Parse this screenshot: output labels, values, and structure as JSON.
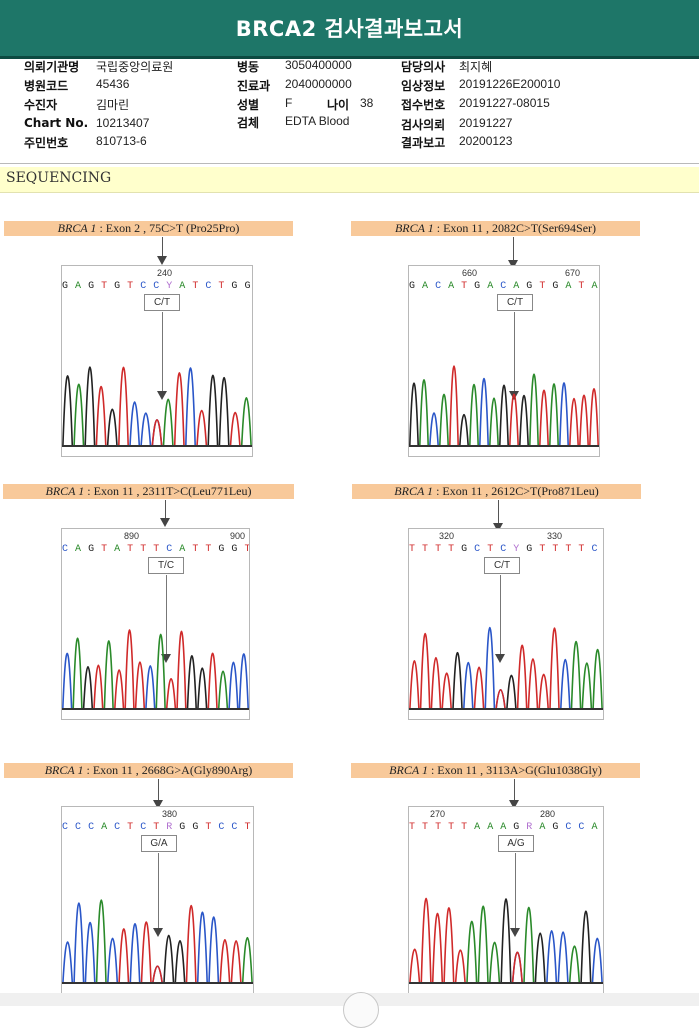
{
  "report_title": "BRCA2 검사결과보고서",
  "info": {
    "col1": [
      {
        "label": "의뢰기관명",
        "value": "국립중앙의료원"
      },
      {
        "label": "병원코드",
        "value": "45436"
      },
      {
        "label": "수진자",
        "value": "김마린"
      },
      {
        "label": "Chart No.",
        "value": "10213407"
      },
      {
        "label": "주민번호",
        "value": "810713-6"
      }
    ],
    "col2": [
      {
        "label": "병동",
        "value": "3050400000"
      },
      {
        "label": "진료과",
        "value": "2040000000"
      },
      {
        "label": "성별",
        "value": "F"
      },
      {
        "label": "검체",
        "value": "EDTA Blood"
      }
    ],
    "age": {
      "label": "나이",
      "value": "38"
    },
    "col3": [
      {
        "label": "담당의사",
        "value": "최지혜"
      },
      {
        "label": "임상정보",
        "value": "20191226E200010"
      },
      {
        "label": "접수번호",
        "value": "20191227-08015"
      },
      {
        "label": "검사의뢰",
        "value": "20191227"
      },
      {
        "label": "결과보고",
        "value": "20200123"
      }
    ]
  },
  "section_title": "SEQUENCING",
  "variants": [
    {
      "gene": "BRCA 1",
      "desc": " : Exon 2 , 75C>T (Pro25Pro)",
      "sequence": "G A G T G T C C Y A T C T G G T A",
      "positions": [
        "240"
      ],
      "genotype": "C/T"
    },
    {
      "gene": "BRCA 1",
      "desc": " : Exon 11 , 2082C>T(Ser694Ser)",
      "sequence": "G A C A T G A C A G T G A T A C T T T",
      "positions": [
        "660",
        "670"
      ],
      "genotype": "C/T"
    },
    {
      "gene": "BRCA 1",
      "desc": " : Exon 11 , 2311T>C(Leu771Leu)",
      "sequence": "C A G T A T T T C A T T G G T A C C",
      "positions": [
        "890",
        "900"
      ],
      "genotype": "T/C"
    },
    {
      "gene": "BRCA 1",
      "desc": " : Exon 11 , 2612C>T(Pro871Leu)",
      "sequence": "T T T T G C T C Y G T T T T C A A A",
      "positions": [
        "320",
        "330"
      ],
      "genotype": "C/T"
    },
    {
      "gene": "BRCA 1",
      "desc": " : Exon 11 , 2668G>A(Gly890Arg)",
      "sequence": "C C C A C T C T R G G T C C T T A",
      "positions": [
        "380"
      ],
      "genotype": "G/A"
    },
    {
      "gene": "BRCA 1",
      "desc": " : Exon 11 , 3113A>G(Glu1038Gly)",
      "sequence": "T T T T T A A A G R A G C C A G C",
      "positions": [
        "270",
        "280"
      ],
      "genotype": "A/G"
    }
  ],
  "base_colors": {
    "A": "#2a8a2a",
    "C": "#2a56c8",
    "G": "#222222",
    "T": "#d02a2a"
  }
}
